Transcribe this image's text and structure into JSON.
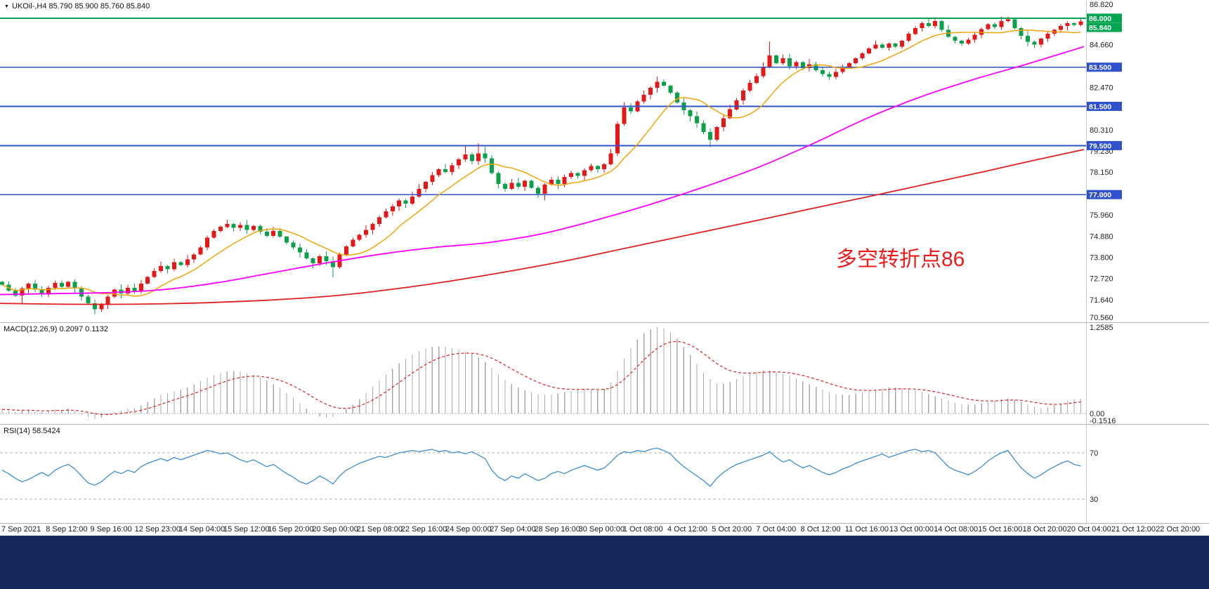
{
  "symbol_bar": {
    "marker": "▼",
    "text": "UKOil-,H4 85.790 85.900 85.760 85.840"
  },
  "annotation": {
    "text": "多空转折点86"
  },
  "colors": {
    "up": "#e51717",
    "down": "#0ba14a",
    "ma_fast": "#f2a50a",
    "ma_mid": "#ff00ff",
    "ma_slow": "#e02020",
    "level_green": "#00a550",
    "level_blue": "#2f51cc",
    "macd_hist": "#a8a8a8",
    "macd_signal": "#e02020",
    "rsi": "#3e8ed0",
    "tag_text": "#ffffff"
  },
  "price_axis": {
    "plain_labels": [
      {
        "text": "86.820",
        "price": 86.82
      },
      {
        "text": "84.660",
        "price": 84.66
      },
      {
        "text": "82.470",
        "price": 82.47
      },
      {
        "text": "80.310",
        "price": 80.31
      },
      {
        "text": "79.230",
        "price": 79.23
      },
      {
        "text": "78.150",
        "price": 78.15
      },
      {
        "text": "75.960",
        "price": 75.96
      },
      {
        "text": "74.880",
        "price": 74.88
      },
      {
        "text": "73.800",
        "price": 73.8
      },
      {
        "text": "72.720",
        "price": 72.72
      },
      {
        "text": "71.640",
        "price": 71.64
      },
      {
        "text": "70.560",
        "price": 70.56
      }
    ],
    "green_tags": [
      {
        "text": "86.000",
        "price": 86.0
      },
      {
        "text": "85.840",
        "price": 85.84
      }
    ],
    "blue_tags": [
      {
        "text": "83.500",
        "price": 83.5
      },
      {
        "text": "81.500",
        "price": 81.5
      },
      {
        "text": "79.500",
        "price": 79.5
      },
      {
        "text": "77.000",
        "price": 77.0
      }
    ]
  },
  "macd_panel": {
    "label": "MACD(12,26,9) 0.2097 0.1132",
    "axis_labels": [
      {
        "text": "1.2585",
        "v": 1.2585
      },
      {
        "text": "0.00",
        "v": 0
      },
      {
        "text": "-0.1516",
        "v": -0.1516
      }
    ]
  },
  "rsi_panel": {
    "label": "RSI(14) 58.5424",
    "levels": [
      {
        "text": "70",
        "v": 70
      },
      {
        "text": "30",
        "v": 30
      }
    ]
  },
  "chart_data": [
    {
      "type": "candlestick",
      "title": "UKOil- H4",
      "ylim": [
        70.2,
        86.9
      ],
      "x_labels": [
        "7 Sep 2021",
        "8 Sep 12:00",
        "9 Sep 16:00",
        "12 Sep 23:00",
        "14 Sep 04:00",
        "15 Sep 12:00",
        "16 Sep 20:00",
        "20 Sep 00:00",
        "21 Sep 08:00",
        "22 Sep 16:00",
        "24 Sep 00:00",
        "27 Sep 04:00",
        "28 Sep 16:00",
        "30 Sep 00:00",
        "1 Oct 08:00",
        "4 Oct 12:00",
        "5 Oct 20:00",
        "7 Oct 04:00",
        "8 Oct 12:00",
        "11 Oct 16:00",
        "13 Oct 00:00",
        "14 Oct 08:00",
        "15 Oct 16:00",
        "18 Oct 20:00",
        "20 Oct 04:00",
        "21 Oct 12:00",
        "22 Oct 20:00"
      ],
      "first_open": 72.55,
      "last_price": 85.84,
      "closes": [
        72.4,
        72.1,
        71.85,
        72.2,
        72.45,
        72.15,
        71.9,
        72.25,
        72.5,
        72.3,
        72.55,
        72.2,
        71.8,
        71.45,
        71.15,
        71.4,
        71.8,
        72.15,
        71.95,
        72.25,
        72.05,
        72.45,
        72.8,
        73.1,
        73.35,
        73.2,
        73.55,
        73.4,
        73.7,
        73.95,
        74.3,
        74.8,
        75.15,
        75.35,
        75.5,
        75.3,
        75.45,
        75.2,
        75.4,
        75.1,
        74.9,
        75.15,
        74.85,
        74.55,
        74.3,
        74.05,
        73.75,
        73.5,
        73.85,
        73.6,
        73.3,
        73.95,
        74.35,
        74.7,
        74.95,
        75.2,
        75.5,
        75.85,
        76.15,
        76.4,
        76.7,
        76.55,
        76.9,
        77.3,
        77.65,
        78.0,
        78.3,
        78.15,
        78.5,
        78.8,
        79.05,
        78.7,
        79.1,
        78.85,
        78.1,
        77.55,
        77.3,
        77.6,
        77.4,
        77.7,
        77.35,
        77.05,
        77.5,
        77.75,
        77.55,
        77.9,
        78.1,
        77.95,
        78.25,
        78.45,
        78.3,
        78.55,
        79.1,
        80.6,
        81.45,
        81.25,
        81.75,
        82.1,
        82.45,
        82.75,
        82.55,
        82.2,
        81.7,
        81.3,
        81.0,
        80.65,
        80.2,
        79.8,
        80.45,
        80.9,
        81.35,
        81.8,
        82.3,
        82.7,
        83.05,
        83.5,
        84.1,
        83.7,
        83.95,
        83.55,
        83.75,
        83.45,
        83.65,
        83.35,
        83.15,
        83.0,
        83.25,
        83.5,
        83.7,
        83.95,
        84.2,
        84.45,
        84.65,
        84.5,
        84.7,
        84.55,
        84.85,
        85.2,
        85.5,
        85.75,
        85.6,
        85.85,
        85.4,
        85.05,
        84.85,
        84.7,
        84.9,
        85.15,
        85.45,
        85.7,
        85.55,
        85.85,
        85.95,
        85.5,
        85.1,
        84.8,
        84.65,
        84.95,
        85.2,
        85.4,
        85.6,
        85.75,
        85.65,
        85.84
      ],
      "wick_overrides": {
        "3": {
          "low": 71.45
        },
        "14": {
          "low": 70.9
        },
        "34": {
          "high": 75.72
        },
        "50": {
          "low": 72.78
        },
        "70": {
          "high": 79.5
        },
        "72": {
          "high": 79.62
        },
        "73": {
          "high": 79.45
        },
        "82": {
          "low": 76.7
        },
        "94": {
          "high": 81.72
        },
        "99": {
          "high": 83.02
        },
        "107": {
          "low": 79.42
        },
        "116": {
          "high": 84.82
        },
        "140": {
          "high": 86.0
        },
        "141": {
          "high": 86.03
        },
        "152": {
          "high": 86.08
        },
        "156": {
          "low": 84.48
        },
        "163": {
          "high": 85.97
        }
      },
      "levels": {
        "green": [
          86.0
        ],
        "blue": [
          83.5,
          81.5,
          79.5,
          77.0
        ]
      },
      "moving_averages": {
        "fast": {
          "color": "#f2a50a",
          "method": "sma10"
        },
        "mid": {
          "color": "#ff00ff",
          "waypoints": [
            [
              0,
              71.9
            ],
            [
              0.05,
              71.95
            ],
            [
              0.1,
              72.0
            ],
            [
              0.15,
              72.15
            ],
            [
              0.2,
              72.5
            ],
            [
              0.25,
              73.0
            ],
            [
              0.3,
              73.5
            ],
            [
              0.35,
              73.95
            ],
            [
              0.4,
              74.3
            ],
            [
              0.45,
              74.55
            ],
            [
              0.5,
              75.0
            ],
            [
              0.55,
              75.7
            ],
            [
              0.6,
              76.5
            ],
            [
              0.65,
              77.4
            ],
            [
              0.7,
              78.4
            ],
            [
              0.75,
              79.6
            ],
            [
              0.8,
              80.9
            ],
            [
              0.85,
              82.0
            ],
            [
              0.9,
              82.9
            ],
            [
              0.95,
              83.7
            ],
            [
              1,
              84.55
            ]
          ]
        },
        "slow": {
          "color": "#e02020",
          "waypoints": [
            [
              0,
              71.45
            ],
            [
              0.1,
              71.4
            ],
            [
              0.2,
              71.5
            ],
            [
              0.3,
              71.8
            ],
            [
              0.38,
              72.3
            ],
            [
              0.45,
              72.9
            ],
            [
              0.52,
              73.6
            ],
            [
              0.58,
              74.3
            ],
            [
              0.64,
              75.0
            ],
            [
              0.7,
              75.7
            ],
            [
              0.75,
              76.3
            ],
            [
              0.81,
              77.0
            ],
            [
              0.86,
              77.6
            ],
            [
              0.91,
              78.2
            ],
            [
              0.95,
              78.7
            ],
            [
              1,
              79.3
            ]
          ]
        }
      }
    },
    {
      "type": "bar",
      "name": "MACD",
      "params": "12,26,9",
      "value": 0.2097,
      "signal_value": 0.1132,
      "ylim": [
        -0.1516,
        1.2585
      ],
      "histogram": [
        0.06,
        0.04,
        0.02,
        0.04,
        0.05,
        0.03,
        0.02,
        0.04,
        0.06,
        0.05,
        0.07,
        0.03,
        -0.02,
        -0.05,
        -0.08,
        -0.06,
        -0.02,
        0.02,
        0.04,
        0.07,
        0.08,
        0.12,
        0.17,
        0.22,
        0.27,
        0.29,
        0.33,
        0.35,
        0.38,
        0.42,
        0.47,
        0.52,
        0.56,
        0.59,
        0.61,
        0.62,
        0.61,
        0.59,
        0.57,
        0.53,
        0.48,
        0.43,
        0.37,
        0.3,
        0.23,
        0.15,
        0.07,
        0.0,
        -0.04,
        -0.06,
        -0.05,
        0.0,
        0.06,
        0.13,
        0.21,
        0.3,
        0.39,
        0.48,
        0.57,
        0.65,
        0.73,
        0.8,
        0.86,
        0.91,
        0.95,
        0.97,
        0.98,
        0.97,
        0.95,
        0.93,
        0.9,
        0.87,
        0.82,
        0.75,
        0.66,
        0.57,
        0.49,
        0.43,
        0.38,
        0.34,
        0.31,
        0.28,
        0.27,
        0.27,
        0.29,
        0.31,
        0.33,
        0.35,
        0.36,
        0.35,
        0.34,
        0.36,
        0.45,
        0.62,
        0.8,
        0.95,
        1.08,
        1.17,
        1.23,
        1.26,
        1.24,
        1.18,
        1.09,
        0.97,
        0.85,
        0.72,
        0.6,
        0.5,
        0.44,
        0.43,
        0.46,
        0.5,
        0.55,
        0.58,
        0.61,
        0.63,
        0.63,
        0.61,
        0.58,
        0.55,
        0.51,
        0.47,
        0.43,
        0.39,
        0.35,
        0.31,
        0.28,
        0.27,
        0.27,
        0.29,
        0.31,
        0.33,
        0.35,
        0.37,
        0.38,
        0.38,
        0.37,
        0.36,
        0.34,
        0.31,
        0.28,
        0.25,
        0.22,
        0.19,
        0.16,
        0.14,
        0.13,
        0.13,
        0.15,
        0.17,
        0.19,
        0.21,
        0.22,
        0.2,
        0.17,
        0.13,
        0.1,
        0.08,
        0.09,
        0.12,
        0.15,
        0.18,
        0.21,
        0.21
      ]
    },
    {
      "type": "line",
      "name": "RSI",
      "period": 14,
      "value": 58.5424,
      "levels": [
        70,
        30
      ],
      "values": [
        55,
        52,
        48,
        45,
        47,
        50,
        53,
        50,
        55,
        58,
        60,
        56,
        50,
        44,
        42,
        45,
        50,
        54,
        52,
        55,
        53,
        58,
        61,
        63,
        65,
        63,
        66,
        64,
        66,
        68,
        70,
        72,
        71,
        69,
        70,
        67,
        64,
        62,
        64,
        61,
        58,
        60,
        56,
        52,
        49,
        45,
        43,
        46,
        50,
        47,
        43,
        50,
        55,
        58,
        61,
        63,
        65,
        67,
        66,
        68,
        70,
        71,
        72,
        71,
        72,
        73,
        71,
        72,
        70,
        71,
        69,
        71,
        68,
        65,
        55,
        49,
        46,
        50,
        48,
        52,
        49,
        46,
        48,
        52,
        54,
        52,
        55,
        57,
        59,
        57,
        55,
        57,
        62,
        68,
        71,
        70,
        72,
        71,
        73,
        74,
        72,
        69,
        63,
        58,
        54,
        50,
        46,
        41,
        48,
        53,
        57,
        60,
        62,
        64,
        66,
        68,
        71,
        66,
        62,
        64,
        60,
        57,
        59,
        56,
        53,
        51,
        53,
        56,
        58,
        61,
        63,
        65,
        67,
        69,
        66,
        68,
        70,
        72,
        73,
        71,
        72,
        70,
        64,
        58,
        55,
        53,
        51,
        54,
        58,
        63,
        67,
        70,
        72,
        64,
        57,
        52,
        48,
        51,
        55,
        58,
        61,
        63,
        60,
        58.54
      ]
    }
  ]
}
